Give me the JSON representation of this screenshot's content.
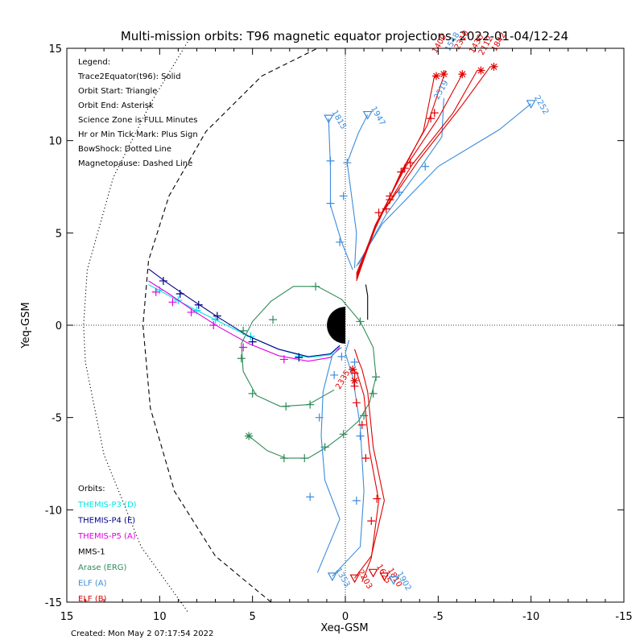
{
  "chart_data": {
    "type": "line",
    "title": "Multi-mission orbits: T96 magnetic equator projections, 2022-01-04/12-24",
    "xlabel": "Xeq-GSM",
    "ylabel": "Yeq-GSM",
    "xlim": [
      15,
      -15
    ],
    "ylim": [
      15,
      -15
    ],
    "xticks": [
      15,
      10,
      5,
      0,
      -5,
      -10,
      -15
    ],
    "yticks": [
      -15,
      -10,
      -5,
      0,
      5,
      10,
      15
    ],
    "xtick_labels": [
      "15",
      "10",
      "5",
      "0",
      "-5",
      "-10",
      "-15"
    ],
    "ytick_labels": [
      "-15",
      "-10",
      "-5",
      "0",
      "5",
      "10",
      "15"
    ],
    "legend_notes": [
      "Legend:",
      "Trace2Equator(t96): Solid",
      "Orbit Start: Triangle",
      "Orbit End: Asterisk",
      "Science Zone is FULL Minutes",
      "Hr or Min Tick Mark: Plus Sign",
      "BowShock: Dotted Line",
      "Magnetopause: Dashed Line"
    ],
    "orbits_title": "Orbits:",
    "footer": "Created: Mon May  2 07:17:54 2022",
    "boundaries": [
      {
        "name": "BowShock",
        "style": "dotted",
        "points": [
          [
            8.5,
            -15.5
          ],
          [
            11,
            -12
          ],
          [
            13,
            -7
          ],
          [
            14,
            -2
          ],
          [
            14.1,
            0
          ],
          [
            13.9,
            3
          ],
          [
            12.5,
            8
          ],
          [
            10.5,
            12
          ],
          [
            8.4,
            15.5
          ]
        ]
      },
      {
        "name": "Magnetopause",
        "style": "dashed",
        "points": [
          [
            4,
            -15
          ],
          [
            7,
            -12.5
          ],
          [
            9.2,
            -9
          ],
          [
            10.5,
            -4.5
          ],
          [
            10.9,
            0
          ],
          [
            10.6,
            3.5
          ],
          [
            9.5,
            7
          ],
          [
            7.5,
            10.5
          ],
          [
            4.5,
            13.5
          ],
          [
            1.5,
            15
          ]
        ]
      }
    ],
    "series": [
      {
        "name": "THEMIS-P3 (D)",
        "color": "#00e5e5",
        "points": [
          [
            10.6,
            2.2
          ],
          [
            9.5,
            1.6
          ],
          [
            8.2,
            0.9
          ],
          [
            6.8,
            0.2
          ],
          [
            5.2,
            -0.6
          ],
          [
            3.6,
            -1.3
          ],
          [
            2,
            -1.75
          ],
          [
            0.8,
            -1.6
          ],
          [
            0.3,
            -1.1
          ]
        ],
        "ticks": [
          [
            10,
            1.9
          ],
          [
            9,
            1.35
          ],
          [
            8,
            0.8
          ],
          [
            7,
            0.3
          ],
          [
            5.1,
            -0.6
          ],
          [
            2.5,
            -1.7
          ]
        ],
        "start": null,
        "end": null
      },
      {
        "name": "THEMIS-P4 (E)",
        "color": "#00008b",
        "points": [
          [
            10.6,
            3.05
          ],
          [
            9.6,
            2.3
          ],
          [
            8.3,
            1.4
          ],
          [
            6.8,
            0.4
          ],
          [
            5.2,
            -0.6
          ],
          [
            3.6,
            -1.3
          ],
          [
            2,
            -1.7
          ],
          [
            0.8,
            -1.55
          ],
          [
            0.3,
            -1.1
          ]
        ],
        "ticks": [
          [
            9.8,
            2.4
          ],
          [
            8.9,
            1.7
          ],
          [
            7.9,
            1.1
          ],
          [
            6.9,
            0.5
          ],
          [
            5,
            -0.9
          ],
          [
            2.5,
            -1.75
          ]
        ],
        "start": null,
        "end": null
      },
      {
        "name": "THEMIS-P5 (A)",
        "color": "#e000e0",
        "points": [
          [
            10.6,
            2.4
          ],
          [
            9.5,
            1.7
          ],
          [
            8.2,
            0.8
          ],
          [
            6.8,
            -0.1
          ],
          [
            5.2,
            -1
          ],
          [
            3.6,
            -1.65
          ],
          [
            2,
            -1.95
          ],
          [
            0.8,
            -1.75
          ],
          [
            0.3,
            -1.2
          ]
        ],
        "ticks": [
          [
            10.2,
            1.8
          ],
          [
            9.3,
            1.25
          ],
          [
            8.3,
            0.7
          ],
          [
            7.1,
            0.0
          ],
          [
            5.5,
            -1.2
          ],
          [
            3.3,
            -1.85
          ]
        ],
        "start": null,
        "end": null
      },
      {
        "name": "MMS-1",
        "color": "#000000",
        "points": [
          [
            -1.2,
            0.3
          ],
          [
            -1.2,
            1.6
          ],
          [
            -1.1,
            2.2
          ]
        ],
        "ticks": [],
        "start": null,
        "end": null
      },
      {
        "name": "Arase (ERG)",
        "color": "#2e8b57",
        "points": [
          [
            5.2,
            -6
          ],
          [
            4.2,
            -6.8
          ],
          [
            3.2,
            -7.2
          ],
          [
            2,
            -7.2
          ],
          [
            1,
            -6.6
          ],
          [
            0.2,
            -6
          ],
          [
            -0.7,
            -5.2
          ],
          [
            -1.3,
            -4.2
          ],
          [
            -1.65,
            -2.8
          ],
          [
            -1.5,
            -1.2
          ],
          [
            -0.8,
            0.2
          ],
          [
            0.2,
            1.4
          ],
          [
            1.5,
            2.1
          ],
          [
            2.8,
            2.1
          ],
          [
            4,
            1.3
          ],
          [
            5,
            0.2
          ],
          [
            5.6,
            -1
          ],
          [
            5.5,
            -2.5
          ],
          [
            4.8,
            -3.8
          ],
          [
            3.5,
            -4.4
          ],
          [
            2,
            -4.3
          ],
          [
            0.6,
            -3.5
          ]
        ],
        "ticks": [
          [
            3.3,
            -7.2
          ],
          [
            2.2,
            -7.2
          ],
          [
            1.1,
            -6.6
          ],
          [
            0.1,
            -5.9
          ],
          [
            -1,
            -4.9
          ],
          [
            -1.5,
            -3.7
          ],
          [
            -1.65,
            -2.8
          ],
          [
            -0.8,
            0.2
          ],
          [
            1.6,
            2.1
          ],
          [
            3.9,
            0.3
          ],
          [
            5.5,
            -0.3
          ],
          [
            5.6,
            -1.8
          ],
          [
            5,
            -3.7
          ],
          [
            3.2,
            -4.4
          ],
          [
            1.9,
            -4.3
          ]
        ],
        "start": null,
        "end": [
          5.2,
          -6
        ]
      },
      {
        "name": "ELF (A)",
        "color": "#3c8cdc",
        "points": [
          [
            [
              0.7,
              -13.6
            ],
            [
              -0.8,
              -12
            ],
            [
              -1,
              -9
            ],
            [
              -0.8,
              -5.5
            ],
            [
              -0.4,
              -2.8
            ],
            [
              0,
              -1.5
            ],
            [
              -0.2,
              -0.8
            ]
          ],
          [
            [
              1.5,
              -13.4
            ],
            [
              0.3,
              -10.5
            ],
            [
              1.1,
              -8.4
            ],
            [
              1.3,
              -6
            ],
            [
              1.2,
              -3.6
            ],
            [
              0.7,
              -1.6
            ],
            [
              0.2,
              -1.2
            ]
          ],
          [
            [
              -0.4,
              3
            ],
            [
              0.2,
              4.5
            ],
            [
              0.8,
              6.5
            ],
            [
              0.8,
              8.5
            ],
            [
              0.9,
              11.2
            ]
          ],
          [
            [
              -0.5,
              3.1
            ],
            [
              -0.6,
              5
            ],
            [
              -0.1,
              8.8
            ],
            [
              -0.7,
              10.4
            ],
            [
              -1.2,
              11.4
            ]
          ],
          [
            [
              -0.6,
              3.2
            ],
            [
              -2,
              5.5
            ],
            [
              -5,
              8.6
            ],
            [
              -8.3,
              10.6
            ],
            [
              -10,
              12
            ]
          ],
          [
            [
              -0.7,
              3.3
            ],
            [
              -2.2,
              6
            ],
            [
              -3.8,
              8.2
            ],
            [
              -5.2,
              10.2
            ],
            [
              -5.3,
              12.3
            ]
          ]
        ],
        "ticks": [
          [
            1.9,
            -9.3
          ],
          [
            1.4,
            -5
          ],
          [
            0.6,
            -2.7
          ],
          [
            0.2,
            -1.7
          ],
          [
            -0.6,
            -9.5
          ],
          [
            -0.8,
            -6
          ],
          [
            -0.5,
            -2
          ],
          [
            0.3,
            4.5
          ],
          [
            0.8,
            6.6
          ],
          [
            0.8,
            8.9
          ],
          [
            0.1,
            7
          ],
          [
            -0.1,
            8.8
          ],
          [
            -4.3,
            8.6
          ],
          [
            -2.9,
            7.2
          ]
        ],
        "start": null,
        "end": null
      },
      {
        "name": "ELF (B)",
        "color": "#e00000",
        "points": [
          [
            [
              -0.5,
              -13.7
            ],
            [
              -1.4,
              -12.5
            ],
            [
              -2.1,
              -9.5
            ],
            [
              -1.5,
              -6.6
            ],
            [
              -1.2,
              -3.6
            ],
            [
              -0.9,
              -2.4
            ],
            [
              -0.7,
              -1.9
            ],
            [
              -0.5,
              -1.3
            ]
          ],
          [
            [
              -0.9,
              -13.9
            ],
            [
              -1.4,
              -12.6
            ],
            [
              -1.8,
              -9.5
            ],
            [
              -1.3,
              -6.8
            ],
            [
              -1,
              -3.8
            ],
            [
              -0.6,
              -2.5
            ]
          ],
          [
            [
              -0.6,
              2.4
            ],
            [
              -1.5,
              5
            ],
            [
              -2.9,
              8
            ],
            [
              -4.2,
              10.5
            ],
            [
              -4.8,
              13.5
            ]
          ],
          [
            [
              -0.6,
              2.5
            ],
            [
              -1.6,
              5.2
            ],
            [
              -3,
              8.3
            ],
            [
              -4.4,
              10.8
            ],
            [
              -5.4,
              13.8
            ]
          ],
          [
            [
              -0.6,
              2.6
            ],
            [
              -1.6,
              5.4
            ],
            [
              -3.2,
              8.5
            ],
            [
              -5,
              11.2
            ],
            [
              -6.3,
              13.6
            ]
          ],
          [
            [
              -0.6,
              2.7
            ],
            [
              -1.7,
              5.6
            ],
            [
              -3.6,
              8.7
            ],
            [
              -5.8,
              11.5
            ],
            [
              -7.1,
              13.8
            ]
          ],
          [
            [
              -0.6,
              2.8
            ],
            [
              -1.8,
              5.8
            ],
            [
              -4,
              9
            ],
            [
              -6.2,
              11.8
            ],
            [
              -7.8,
              14
            ]
          ]
        ],
        "ticks": [
          [
            -1.4,
            -10.6
          ],
          [
            -1.7,
            -9.4
          ],
          [
            -1.1,
            -7.2
          ],
          [
            -0.9,
            -5.4
          ],
          [
            -0.6,
            -4.2
          ],
          [
            -0.5,
            -3.3
          ],
          [
            -0.5,
            -2.6
          ],
          [
            -2.2,
            6.3
          ],
          [
            -2.4,
            7
          ],
          [
            -2.4,
            6.8
          ],
          [
            -1.8,
            6.1
          ],
          [
            -3,
            8.3
          ],
          [
            -3.2,
            8.5
          ],
          [
            -3.5,
            8.8
          ],
          [
            -4.6,
            11.2
          ],
          [
            -4.8,
            11.5
          ]
        ],
        "start": null,
        "end": [
          [
            -0.4,
            -2.4
          ],
          [
            -0.5,
            -3
          ],
          [
            -5.3,
            13.6
          ],
          [
            -6.3,
            13.6
          ],
          [
            -7.3,
            13.8
          ],
          [
            -8,
            14
          ],
          [
            -4.9,
            13.5
          ]
        ]
      }
    ],
    "start_markers": [
      {
        "x": 0.7,
        "y": -13.6,
        "color": "#3c8cdc",
        "label": "1353"
      },
      {
        "x": -0.5,
        "y": -13.7,
        "color": "#e00000",
        "label": "2203"
      },
      {
        "x": -1.5,
        "y": -13.4,
        "color": "#e00000",
        "label": "1625"
      },
      {
        "x": -2.1,
        "y": -13.6,
        "color": "#e00000",
        "label": "1810"
      },
      {
        "x": -2.6,
        "y": -13.8,
        "color": "#3c8cdc",
        "label": "1902"
      },
      {
        "x": 0.9,
        "y": 11.2,
        "color": "#3c8cdc",
        "label": "1815"
      },
      {
        "x": -1.2,
        "y": 11.4,
        "color": "#3c8cdc",
        "label": "1947"
      },
      {
        "x": -10,
        "y": 12,
        "color": "#3c8cdc",
        "label": "2252"
      }
    ],
    "end_labels": [
      {
        "x": -5,
        "y": 12.2,
        "color": "#3c8cdc",
        "label": "2519"
      },
      {
        "x": -4.9,
        "y": 14.7,
        "color": "#e00000",
        "label": "1400"
      },
      {
        "x": -5.6,
        "y": 14.8,
        "color": "#3c8cdc",
        "label": "1548"
      },
      {
        "x": -6.1,
        "y": 14.9,
        "color": "#e00000",
        "label": "2310"
      },
      {
        "x": -6.9,
        "y": 14.7,
        "color": "#e00000",
        "label": "1430"
      },
      {
        "x": -7.4,
        "y": 14.6,
        "color": "#e00000",
        "label": "2112"
      },
      {
        "x": -8.1,
        "y": 14.8,
        "color": "#e00000",
        "label": "1842"
      },
      {
        "x": 0.3,
        "y": -3.5,
        "color": "#e00000",
        "label": "2335"
      }
    ]
  }
}
